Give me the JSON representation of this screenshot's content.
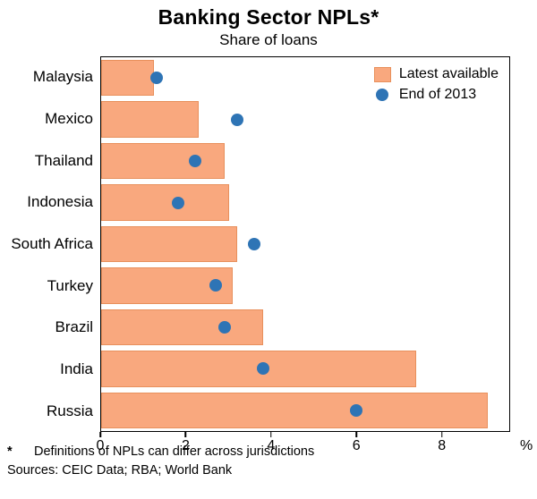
{
  "title": "Banking Sector NPLs*",
  "subtitle": "Share of loans",
  "footnote": {
    "marker": "*",
    "text": "Definitions of NPLs can differ across jurisdictions"
  },
  "sources": "Sources: CEIC Data; RBA; World Bank",
  "chart_data": {
    "type": "bar",
    "orientation": "horizontal",
    "title": "Banking Sector NPLs*",
    "subtitle": "Share of loans",
    "categories": [
      "Malaysia",
      "Mexico",
      "Thailand",
      "Indonesia",
      "South Africa",
      "Turkey",
      "Brazil",
      "India",
      "Russia"
    ],
    "series": [
      {
        "name": "Latest available",
        "marker": "bar",
        "color": "#F9A87E",
        "border_color": "#E8905C",
        "values": [
          1.25,
          2.3,
          2.9,
          3.0,
          3.2,
          3.1,
          3.8,
          7.4,
          9.1
        ]
      },
      {
        "name": "End of 2013",
        "marker": "dot",
        "color": "#2E74B5",
        "values": [
          1.3,
          3.2,
          2.2,
          1.8,
          3.6,
          2.7,
          2.9,
          3.8,
          6.0
        ]
      }
    ],
    "xlim": [
      0,
      9.6
    ],
    "xticks": [
      0,
      2,
      4,
      6,
      8
    ],
    "x_unit": "%",
    "grid": false,
    "legend_position": "top-right"
  }
}
